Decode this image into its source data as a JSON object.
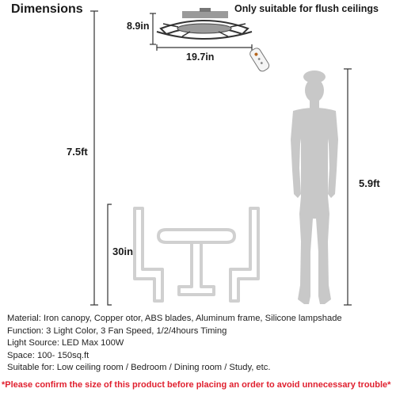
{
  "title": "Dimensions",
  "note": "Only suitable for flush ceilings",
  "dimensions": {
    "fan_height": "8.9in",
    "fan_width": "19.7in",
    "ceiling_height": "7.5ft",
    "person_height": "5.9ft",
    "table_height": "30in"
  },
  "specs": [
    "Material: Iron canopy, Copper otor, ABS blades, Aluminum frame, Silicone lampshade",
    "Function: 3 Light Color, 3 Fan Speed, 1/2/4hours Timing",
    "Light Source: LED Max 100W",
    "Space: 100- 150sq.ft",
    "Suitable for: Low ceiling room / Bedroom / Dining room / Study, etc."
  ],
  "warning": "*Please confirm the size of this product before placing an order to avoid unnecessary trouble*",
  "colors": {
    "text": "#1a1a1a",
    "warning": "#e0202f",
    "dimension_line": "#333333",
    "silhouette": "#c8c8c8",
    "furniture_outline": "#d0d0d0"
  },
  "icons": [
    "ceiling-fan-icon",
    "remote-control-icon",
    "person-silhouette-icon",
    "table-chairs-icon"
  ]
}
